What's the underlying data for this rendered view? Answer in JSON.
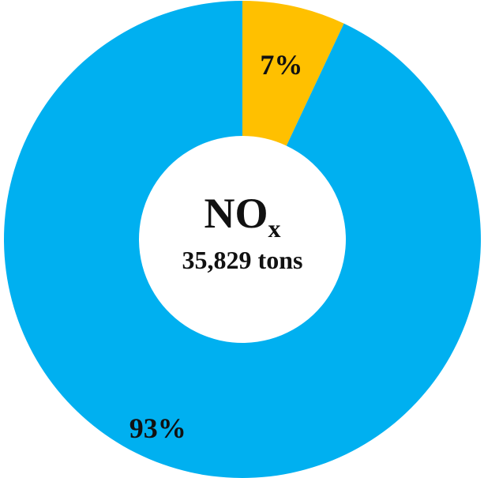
{
  "chart_data": {
    "type": "pie",
    "variant": "donut",
    "categories": [
      "",
      ""
    ],
    "values": [
      7,
      93
    ],
    "slice_labels": [
      "7%",
      "93%"
    ],
    "colors": [
      "#FFC000",
      "#00B0F0"
    ],
    "start": "top, clockwise",
    "center_label": {
      "title_main": "NO",
      "title_subscript": "x",
      "subtitle": "35,829 tons"
    },
    "legend": "none"
  }
}
